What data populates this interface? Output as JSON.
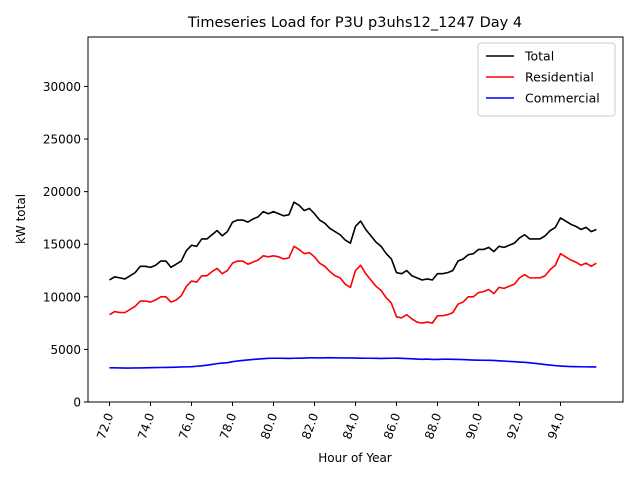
{
  "chart_data": {
    "type": "line",
    "title": "Timeseries Load for P3U p3uhs12_1247  Day 4",
    "xlabel": "Hour of Year",
    "ylabel": "kW total",
    "xlim": [
      70.95,
      97.05
    ],
    "ylim": [
      0,
      34700
    ],
    "xticks": [
      72,
      74,
      76,
      78,
      80,
      82,
      84,
      86,
      88,
      90,
      92,
      94
    ],
    "xtick_labels": [
      "72.0",
      "74.0",
      "76.0",
      "78.0",
      "80.0",
      "82.0",
      "84.0",
      "86.0",
      "88.0",
      "90.0",
      "92.0",
      "94.0"
    ],
    "yticks": [
      0,
      5000,
      10000,
      15000,
      20000,
      25000,
      30000
    ],
    "ytick_labels": [
      "0",
      "5000",
      "10000",
      "15000",
      "20000",
      "25000",
      "30000"
    ],
    "legend_position": "top-right",
    "x": [
      72.0,
      72.25,
      72.5,
      72.75,
      73.0,
      73.25,
      73.5,
      73.75,
      74.0,
      74.25,
      74.5,
      74.75,
      75.0,
      75.25,
      75.5,
      75.75,
      76.0,
      76.25,
      76.5,
      76.75,
      77.0,
      77.25,
      77.5,
      77.75,
      78.0,
      78.25,
      78.5,
      78.75,
      79.0,
      79.25,
      79.5,
      79.75,
      80.0,
      80.25,
      80.5,
      80.75,
      81.0,
      81.25,
      81.5,
      81.75,
      82.0,
      82.25,
      82.5,
      82.75,
      83.0,
      83.25,
      83.5,
      83.75,
      84.0,
      84.25,
      84.5,
      84.75,
      85.0,
      85.25,
      85.5,
      85.75,
      86.0,
      86.25,
      86.5,
      86.75,
      87.0,
      87.25,
      87.5,
      87.75,
      88.0,
      88.25,
      88.5,
      88.75,
      89.0,
      89.25,
      89.5,
      89.75,
      90.0,
      90.25,
      90.5,
      90.75,
      91.0,
      91.25,
      91.5,
      91.75,
      92.0,
      92.25,
      92.5,
      92.75,
      93.0,
      93.25,
      93.5,
      93.75,
      94.0,
      94.25,
      94.5,
      94.75,
      95.0,
      95.25,
      95.5,
      95.75
    ],
    "series": [
      {
        "name": "Total",
        "color": "#000000",
        "values": [
          11600,
          11900,
          11800,
          11700,
          12000,
          12300,
          12900,
          12900,
          12800,
          13000,
          13400,
          13400,
          12800,
          13100,
          13400,
          14400,
          14900,
          14800,
          15500,
          15500,
          15900,
          16300,
          15800,
          16200,
          17100,
          17300,
          17300,
          17100,
          17400,
          17600,
          18100,
          17900,
          18100,
          17900,
          17700,
          17800,
          19000,
          18700,
          18200,
          18400,
          17900,
          17300,
          17000,
          16500,
          16200,
          15900,
          15400,
          15100,
          16700,
          17200,
          16400,
          15800,
          15200,
          14800,
          14100,
          13600,
          12300,
          12200,
          12500,
          12000,
          11800,
          11600,
          11700,
          11600,
          12200,
          12200,
          12300,
          12500,
          13400,
          13600,
          14000,
          14100,
          14500,
          14500,
          14700,
          14300,
          14800,
          14700,
          14900,
          15100,
          15600,
          15900,
          15500,
          15500,
          15500,
          15800,
          16300,
          16600,
          17500,
          17200,
          16900,
          16700,
          16400,
          16600,
          16200,
          16400
        ]
      },
      {
        "name": "Residential",
        "color": "#ff0000",
        "values": [
          8300,
          8600,
          8500,
          8500,
          8800,
          9100,
          9600,
          9600,
          9500,
          9700,
          10000,
          10000,
          9500,
          9700,
          10100,
          11000,
          11500,
          11400,
          12000,
          12000,
          12400,
          12700,
          12200,
          12500,
          13200,
          13400,
          13400,
          13100,
          13300,
          13500,
          13900,
          13800,
          13900,
          13800,
          13600,
          13700,
          14800,
          14500,
          14100,
          14200,
          13800,
          13200,
          12900,
          12400,
          12000,
          11800,
          11200,
          10900,
          12500,
          13000,
          12200,
          11600,
          11000,
          10600,
          9900,
          9400,
          8100,
          8000,
          8300,
          7900,
          7600,
          7500,
          7600,
          7500,
          8200,
          8200,
          8300,
          8500,
          9300,
          9500,
          10000,
          10000,
          10400,
          10500,
          10700,
          10300,
          10900,
          10800,
          11000,
          11200,
          11800,
          12100,
          11800,
          11800,
          11800,
          12000,
          12600,
          13000,
          14100,
          13800,
          13500,
          13300,
          13000,
          13200,
          12900,
          13200
        ]
      },
      {
        "name": "Commercial",
        "color": "#0000ff",
        "values": [
          3250,
          3250,
          3240,
          3230,
          3230,
          3240,
          3240,
          3250,
          3260,
          3270,
          3280,
          3290,
          3300,
          3310,
          3330,
          3340,
          3360,
          3400,
          3440,
          3500,
          3570,
          3650,
          3700,
          3740,
          3830,
          3900,
          3950,
          4000,
          4050,
          4080,
          4120,
          4150,
          4160,
          4160,
          4150,
          4140,
          4160,
          4170,
          4180,
          4200,
          4200,
          4190,
          4200,
          4210,
          4200,
          4190,
          4190,
          4190,
          4180,
          4170,
          4160,
          4160,
          4150,
          4140,
          4150,
          4160,
          4170,
          4150,
          4130,
          4110,
          4080,
          4060,
          4080,
          4050,
          4050,
          4070,
          4070,
          4060,
          4050,
          4030,
          4010,
          3990,
          3980,
          3970,
          3960,
          3950,
          3920,
          3890,
          3860,
          3830,
          3800,
          3770,
          3730,
          3680,
          3620,
          3560,
          3510,
          3460,
          3420,
          3390,
          3370,
          3360,
          3350,
          3340,
          3330,
          3330
        ]
      }
    ]
  }
}
